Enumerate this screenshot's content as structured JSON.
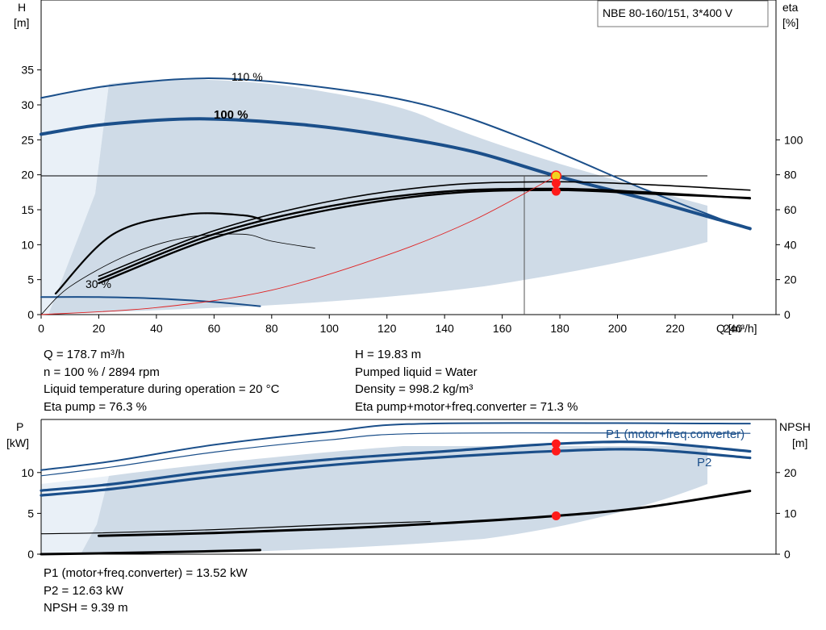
{
  "chart_data": [
    {
      "type": "line",
      "title": "NBE 80-160/151, 3*400 V",
      "xlabel": "Q [m³/h]",
      "ylabel": "H\n[m]",
      "y2label": "eta\n[%]",
      "xlim": [
        0,
        255
      ],
      "ylim": [
        0,
        45
      ],
      "y2lim": [
        0,
        180
      ],
      "xticks": [
        "0",
        "20",
        "40",
        "60",
        "80",
        "100",
        "120",
        "140",
        "160",
        "180",
        "200",
        "220",
        "240"
      ],
      "yticks": [
        "0",
        "5",
        "10",
        "15",
        "20",
        "25",
        "30",
        "35"
      ],
      "y2ticks": [
        "0",
        "20",
        "40",
        "60",
        "80",
        "100"
      ],
      "grid": false,
      "annotations": [
        "110 %",
        "100 %",
        "30 %"
      ],
      "series": [
        {
          "name": "110 %",
          "x": [
            0,
            25,
            60,
            100,
            135,
            170,
            210,
            240
          ],
          "y": [
            31,
            32.8,
            33.8,
            32.4,
            29.8,
            24.8,
            17.8,
            13
          ]
        },
        {
          "name": "100 %",
          "x": [
            0,
            22,
            55,
            90,
            120,
            150,
            178.7,
            210,
            246
          ],
          "y": [
            25.8,
            27.2,
            28,
            27.2,
            25.6,
            23.3,
            19.83,
            16.5,
            12.3
          ]
        },
        {
          "name": "30 %",
          "x": [
            0,
            20,
            40,
            60,
            76
          ],
          "y": [
            2.5,
            2.5,
            2.3,
            1.8,
            1.2
          ]
        },
        {
          "name": "",
          "x": [
            0,
            10,
            30,
            50,
            70,
            80,
            95
          ],
          "y": [
            0,
            4,
            8.5,
            11,
            11.5,
            10.5,
            9.5
          ]
        },
        {
          "name": "",
          "x": [
            5,
            25,
            50,
            70,
            77
          ],
          "y": [
            3,
            11.5,
            14.3,
            14.2,
            13.5
          ]
        },
        {
          "name": "",
          "x": [
            20,
            60,
            100,
            140,
            178.7,
            210,
            246
          ],
          "y": [
            5,
            11.5,
            15.5,
            17.6,
            18,
            17.5,
            16.6
          ]
        },
        {
          "name": "",
          "x": [
            20,
            60,
            100,
            140,
            178.7,
            210,
            246
          ],
          "y": [
            4.5,
            11,
            15,
            17.3,
            17.8,
            17.3,
            16.7
          ]
        },
        {
          "name": "",
          "x": [
            20,
            60,
            100,
            140,
            178.7,
            210,
            246
          ],
          "y": [
            5.5,
            12,
            16.2,
            18.5,
            19,
            18.6,
            17.8
          ]
        },
        {
          "name": "",
          "x": [
            0,
            40,
            80,
            120,
            150,
            178.7
          ],
          "y": [
            0,
            1,
            3.5,
            8.5,
            13.5,
            19.83
          ]
        }
      ],
      "shaded_region": true,
      "duty_point": {
        "Q": 178.7,
        "H": 19.83,
        "eta": 76.3
      }
    },
    {
      "type": "line",
      "xlim": [
        0,
        255
      ],
      "ylabel": "P\n[kW]",
      "y2label": "NPSH\n[m]",
      "ylim": [
        0,
        16.5
      ],
      "y2lim": [
        0,
        33
      ],
      "yticks": [
        "0",
        "5",
        "10"
      ],
      "y2ticks": [
        "0",
        "10",
        "20"
      ],
      "legend": [
        "P1 (motor+freq.converter)",
        "P2"
      ],
      "series": [
        {
          "name": "P1 (motor+freq.converter)",
          "x": [
            0,
            25,
            60,
            100,
            140,
            178.7,
            210,
            246
          ],
          "y": [
            7.8,
            8.6,
            10.2,
            11.6,
            12.6,
            13.52,
            13.7,
            12.6
          ]
        },
        {
          "name": "P2",
          "x": [
            0,
            25,
            60,
            100,
            140,
            178.7,
            210,
            246
          ],
          "y": [
            7.2,
            8.0,
            9.5,
            10.9,
            11.9,
            12.63,
            12.8,
            11.8
          ]
        },
        {
          "name": "",
          "x": [
            0,
            25,
            60,
            100,
            135,
            246
          ],
          "y": [
            10.3,
            11.4,
            13.4,
            15,
            16,
            16
          ]
        },
        {
          "name": "",
          "x": [
            0,
            25,
            60,
            100,
            135,
            246
          ],
          "y": [
            9.6,
            10.7,
            12.5,
            14,
            14.8,
            14.8
          ]
        },
        {
          "name": "NPSH",
          "x": [
            20,
            60,
            100,
            140,
            178.7,
            210,
            246
          ],
          "y2": [
            4.5,
            5.2,
            6.2,
            7.6,
            9.39,
            11.5,
            15.5
          ]
        },
        {
          "name": "",
          "x": [
            0,
            20,
            60,
            100,
            135
          ],
          "y2": [
            5,
            5.2,
            6,
            7.2,
            8
          ]
        },
        {
          "name": "",
          "x": [
            0,
            20,
            50,
            76
          ],
          "y": [
            0,
            0.1,
            0.3,
            0.5
          ]
        }
      ],
      "duty_point": {
        "Q": 178.7,
        "P1": 13.52,
        "P2": 12.63,
        "NPSH": 9.39
      }
    }
  ],
  "info_block_1": {
    "left": [
      "Q = 178.7 m³/h",
      "n = 100 % / 2894 rpm",
      "Liquid temperature during operation = 20 °C",
      "Eta pump = 76.3 %"
    ],
    "right": [
      "H = 19.83 m",
      "Pumped liquid = Water",
      "Density = 998.2 kg/m³",
      "Eta pump+motor+freq.converter = 71.3 %"
    ]
  },
  "info_block_2": {
    "left": [
      "P1 (motor+freq.converter) = 13.52 kW",
      "P2 = 12.63 kW",
      "NPSH = 9.39 m"
    ]
  },
  "colors": {
    "curve_blue": "#1b4f8a",
    "fill": "#cfdbe7",
    "fill_light": "#e9f0f7",
    "system_curve": "#e02020",
    "duty_marker": "#ff1a1a",
    "duty_marker_top": "#f2d21e"
  }
}
